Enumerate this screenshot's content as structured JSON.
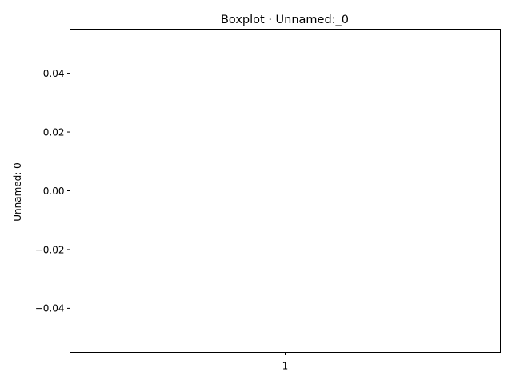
{
  "chart_data": {
    "type": "boxplot",
    "title": "Boxplot · Unnamed:_0",
    "xlabel": "",
    "ylabel": "Unnamed: 0",
    "categories": [
      "1"
    ],
    "series": [
      {
        "values": []
      }
    ],
    "ylim": [
      -0.055,
      0.055
    ],
    "yticks": [
      -0.04,
      -0.02,
      0.0,
      0.02,
      0.04
    ],
    "ytick_labels": [
      "−0.04",
      "−0.02",
      "0.00",
      "0.02",
      "0.04"
    ],
    "xticks": [
      1
    ],
    "xtick_labels": [
      "1"
    ],
    "grid": false,
    "legend": "none"
  }
}
